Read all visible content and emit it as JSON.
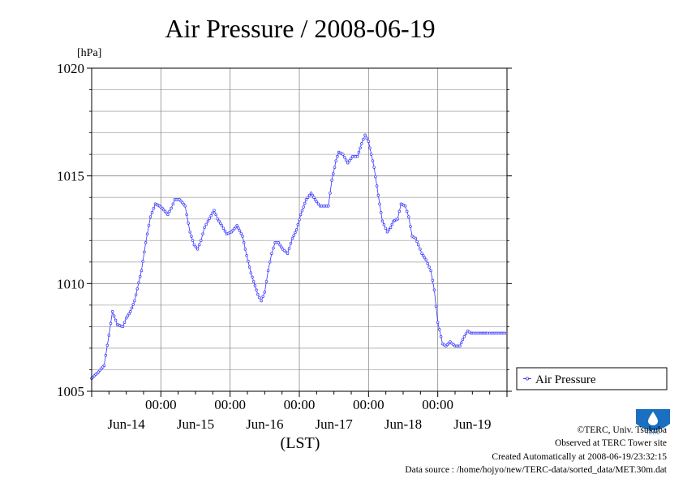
{
  "chart_data": {
    "type": "line",
    "title": "Air Pressure / 2008-06-19",
    "ylabel": "[hPa]",
    "xlabel": "(LST)",
    "ylim": [
      1005,
      1020
    ],
    "yticks": [
      1005,
      1010,
      1015,
      1020
    ],
    "ytick_labels": [
      "1005",
      "1010",
      "1015",
      "1020"
    ],
    "xlim": [
      -1.0,
      5.0
    ],
    "x_unit": "days relative to 2008-06-14 00:00",
    "x_time_ticks": [
      0,
      1,
      2,
      3,
      4
    ],
    "x_time_labels": [
      "00:00",
      "00:00",
      "00:00",
      "00:00",
      "00:00"
    ],
    "x_date_ticks": [
      -0.5,
      0.5,
      1.5,
      2.5,
      3.5,
      4.5
    ],
    "x_date_labels": [
      "Jun-14",
      "Jun-15",
      "Jun-16",
      "Jun-17",
      "Jun-18",
      "Jun-19"
    ],
    "grid": true,
    "legend_position": "right",
    "series": [
      {
        "name": "Air Pressure",
        "color": "#3333ff",
        "x": [
          -1.0,
          -0.9,
          -0.82,
          -0.75,
          -0.7,
          -0.63,
          -0.55,
          -0.5,
          -0.44,
          -0.38,
          -0.28,
          -0.22,
          -0.15,
          -0.08,
          -0.02,
          0.02,
          0.1,
          0.15,
          0.2,
          0.27,
          0.35,
          0.42,
          0.48,
          0.53,
          0.58,
          0.63,
          0.68,
          0.77,
          0.82,
          0.88,
          0.95,
          1.02,
          1.1,
          1.18,
          1.24,
          1.3,
          1.4,
          1.45,
          1.5,
          1.55,
          1.6,
          1.65,
          1.7,
          1.76,
          1.83,
          1.9,
          1.96,
          2.02,
          2.1,
          2.17,
          2.25,
          2.3,
          2.35,
          2.42,
          2.47,
          2.53,
          2.57,
          2.63,
          2.7,
          2.77,
          2.84,
          2.9,
          2.95,
          3.0,
          3.08,
          3.14,
          3.2,
          3.27,
          3.32,
          3.36,
          3.42,
          3.47,
          3.53,
          3.58,
          3.63,
          3.68,
          3.72,
          3.77,
          3.83,
          3.9,
          3.95,
          4.0,
          4.07,
          4.12,
          4.18,
          4.25,
          4.32,
          4.36,
          4.43,
          4.48,
          4.52,
          4.57,
          4.62,
          4.68,
          4.72,
          4.75,
          4.78,
          4.85,
          4.9,
          4.97
        ],
        "y": [
          1005.6,
          1005.9,
          1006.2,
          1007.6,
          1008.7,
          1008.1,
          1008.0,
          1008.4,
          1008.7,
          1009.2,
          1010.6,
          1011.9,
          1013.1,
          1013.7,
          1013.6,
          1013.5,
          1013.2,
          1013.5,
          1013.9,
          1013.9,
          1013.6,
          1012.4,
          1011.8,
          1011.6,
          1012.0,
          1012.6,
          1012.9,
          1013.4,
          1013.0,
          1012.7,
          1012.3,
          1012.4,
          1012.7,
          1012.2,
          1011.3,
          1010.5,
          1009.5,
          1009.2,
          1009.6,
          1010.6,
          1011.4,
          1011.9,
          1011.9,
          1011.6,
          1011.4,
          1012.1,
          1012.5,
          1013.2,
          1013.9,
          1014.2,
          1013.8,
          1013.6,
          1013.6,
          1013.6,
          1014.8,
          1015.7,
          1016.1,
          1016.0,
          1015.6,
          1015.9,
          1015.9,
          1016.5,
          1016.9,
          1016.6,
          1015.4,
          1014.1,
          1012.9,
          1012.4,
          1012.6,
          1012.9,
          1013.0,
          1013.7,
          1013.6,
          1013.1,
          1012.2,
          1012.1,
          1011.8,
          1011.4,
          1011.1,
          1010.6,
          1009.7,
          1008.2,
          1007.2,
          1007.1,
          1007.3,
          1007.1,
          1007.1,
          1007.4,
          1007.8,
          1007.7,
          1007.7,
          1007.7,
          1007.7,
          1007.7,
          1007.7,
          1007.7,
          1007.7,
          1007.7,
          1007.7,
          1007.7
        ]
      }
    ]
  },
  "footer": {
    "copyright": "©TERC, Univ. Tsukuba",
    "observed": "Observed at TERC Tower site",
    "created": "Created Automatically at 2008-06-19/23:32:15",
    "source": "Data source : /home/hojyo/new/TERC-data/sorted_data/MET.30m.dat"
  },
  "logo": {
    "text": "TERC",
    "color": "#1a6fc0"
  }
}
